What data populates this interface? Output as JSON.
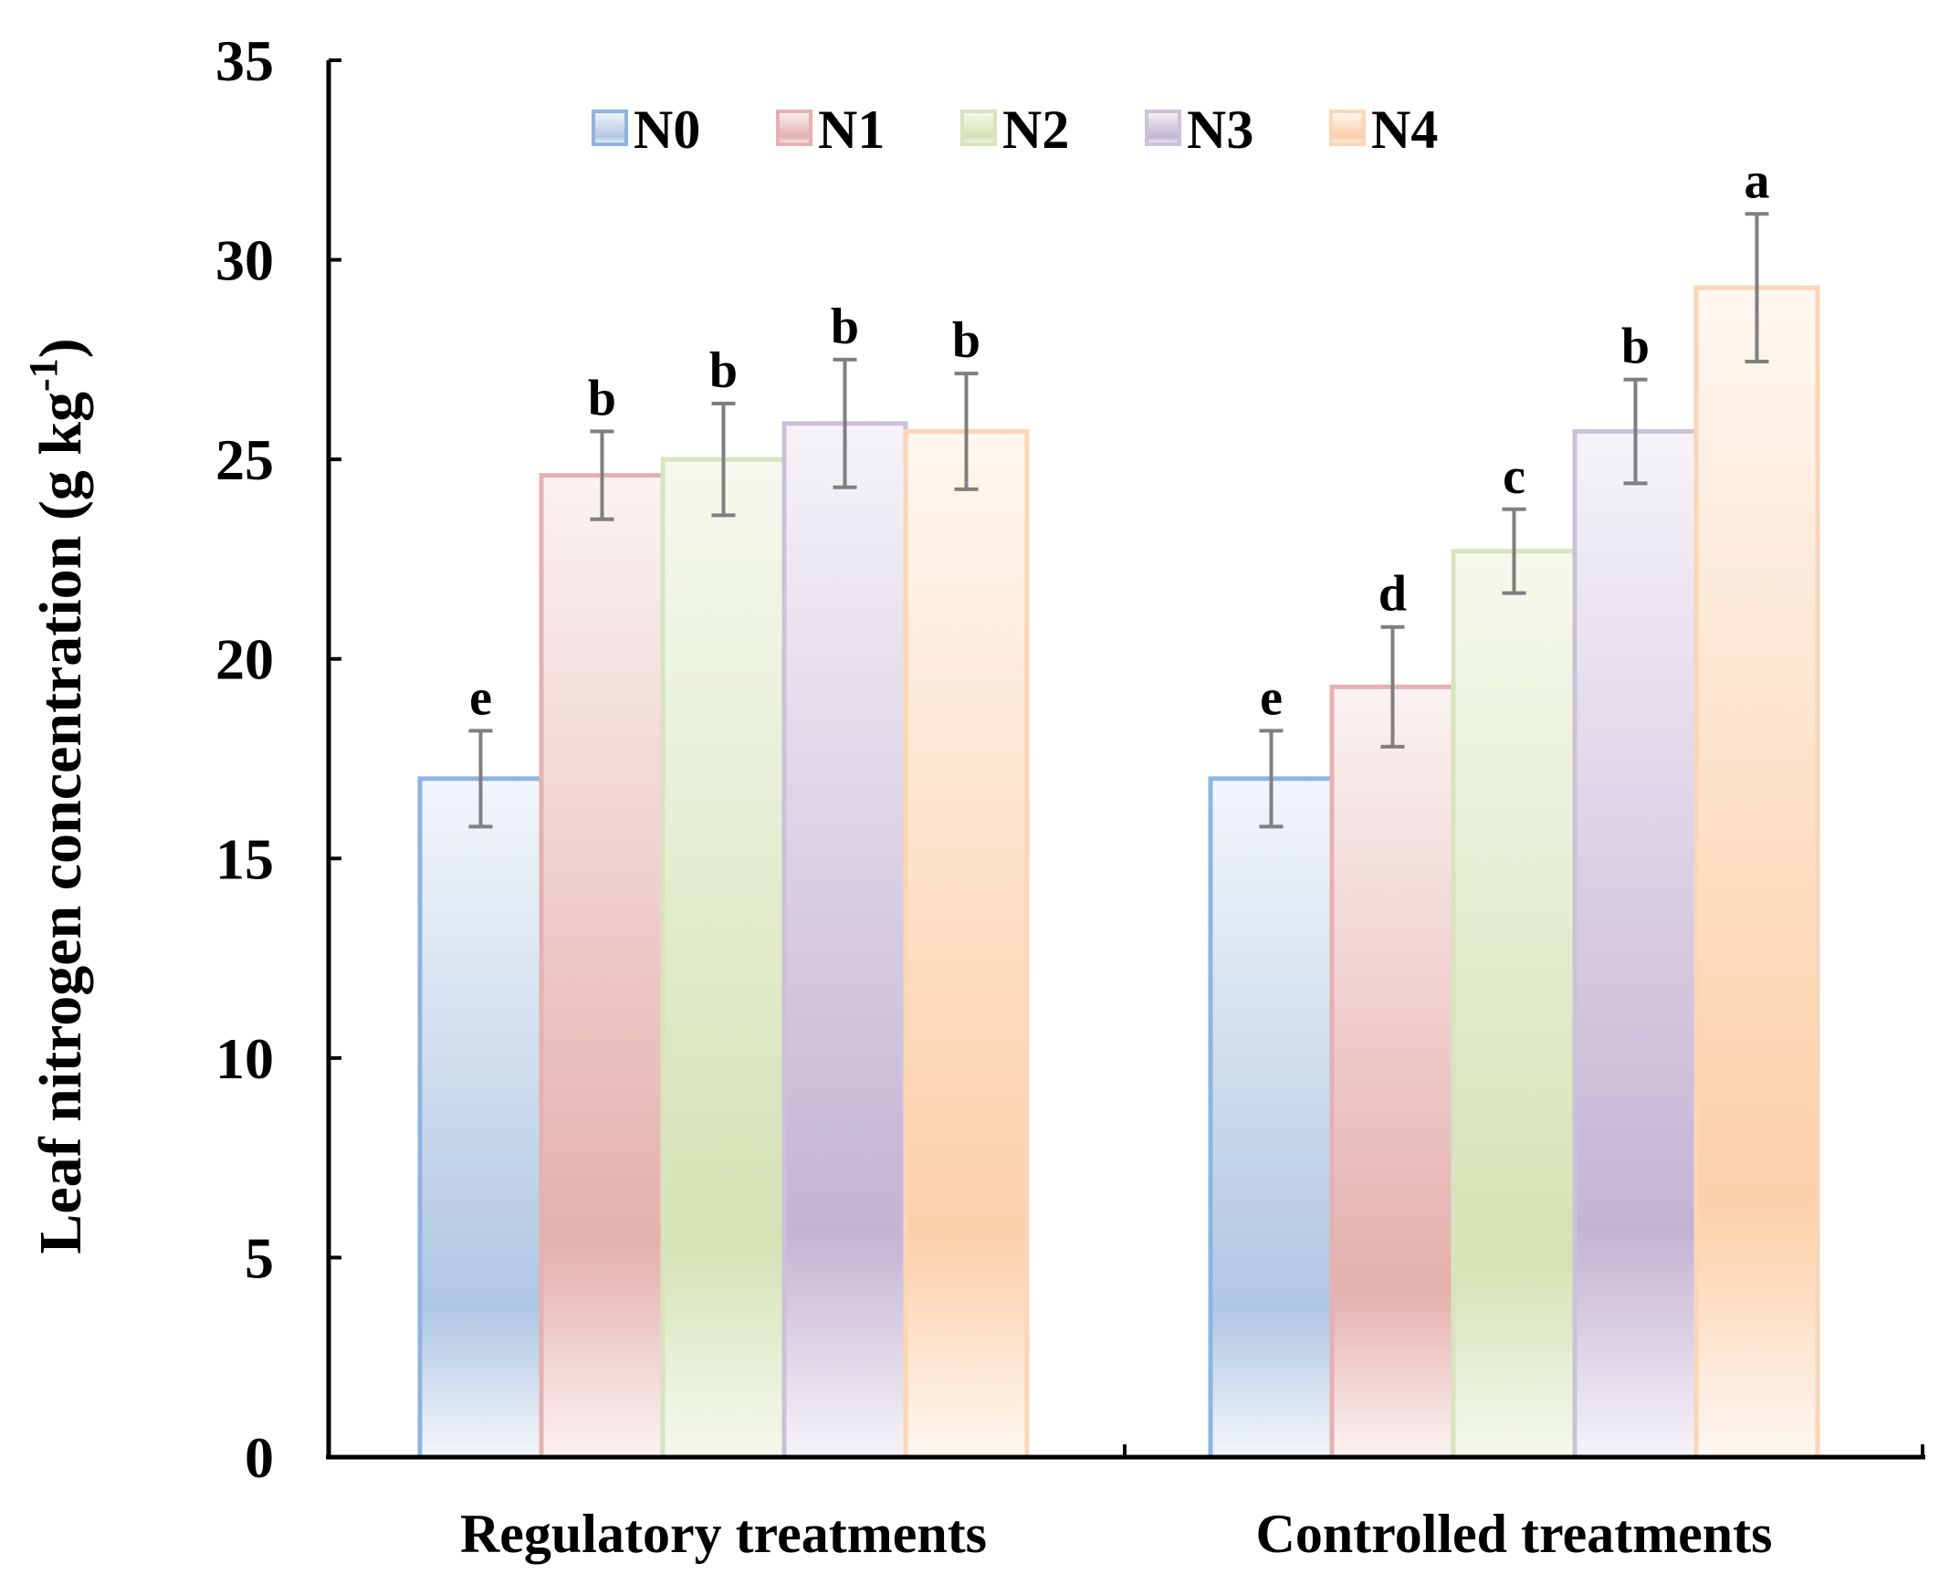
{
  "chart_data": {
    "type": "bar",
    "title": "",
    "xlabel": "",
    "ylabel": "Leaf nitrogen concentration (g kg",
    "ylabel_superscript": "-1",
    "ylabel_suffix": ")",
    "ylim": [
      0,
      35
    ],
    "yticks": [
      0,
      5,
      10,
      15,
      20,
      25,
      30,
      35
    ],
    "categories": [
      "Regulatory treatments",
      "Controlled treatments"
    ],
    "legend_position": "top",
    "series": [
      {
        "name": "N0",
        "color": "#8eb4e3",
        "fill_top": "#f3f6fb",
        "fill_bottom": "#b0c7e3",
        "values": [
          17.0,
          17.0
        ],
        "errors": [
          1.2,
          1.2
        ],
        "letters": [
          "e",
          "e"
        ]
      },
      {
        "name": "N1",
        "color": "#e6b1b0",
        "fill_top": "#fbf2f2",
        "fill_bottom": "#e4b0ae",
        "values": [
          24.6,
          19.3
        ],
        "errors": [
          1.1,
          1.5
        ],
        "letters": [
          "b",
          "d"
        ]
      },
      {
        "name": "N2",
        "color": "#d7e4bd",
        "fill_top": "#f5f9ee",
        "fill_bottom": "#d4e2b4",
        "values": [
          25.0,
          22.7
        ],
        "errors": [
          1.4,
          1.05
        ],
        "letters": [
          "b",
          "c"
        ]
      },
      {
        "name": "N3",
        "color": "#ccc1da",
        "fill_top": "#f5f3f8",
        "fill_bottom": "#c3b4d4",
        "values": [
          25.9,
          25.7
        ],
        "errors": [
          1.6,
          1.3
        ],
        "letters": [
          "b",
          "b"
        ]
      },
      {
        "name": "N4",
        "color": "#fcd5b5",
        "fill_top": "#fff7f1",
        "fill_bottom": "#fbcfa8",
        "values": [
          25.7,
          29.3
        ],
        "errors": [
          1.45,
          1.85
        ],
        "letters": [
          "b",
          "a"
        ]
      }
    ]
  }
}
